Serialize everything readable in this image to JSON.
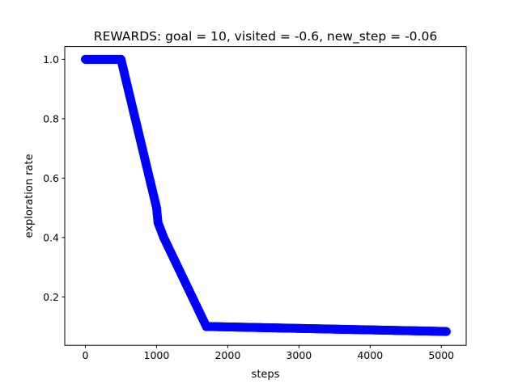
{
  "chart_data": {
    "type": "scatter",
    "title": "REWARDS: goal = 10, visited = -0.6, new_step = -0.06",
    "xlabel": "steps",
    "ylabel": "exploration rate",
    "xlim": [
      -290,
      5350
    ],
    "ylim": [
      0.037,
      1.043
    ],
    "xticks": [
      0,
      1000,
      2000,
      3000,
      4000,
      5000
    ],
    "xtick_labels": [
      "0",
      "1000",
      "2000",
      "3000",
      "4000",
      "5000"
    ],
    "yticks": [
      0.2,
      0.4,
      0.6,
      0.8,
      1.0
    ],
    "ytick_labels": [
      "0.2",
      "0.4",
      "0.6",
      "0.8",
      "1.0"
    ],
    "grid": false,
    "series": [
      {
        "color": "#0000ff",
        "marker": "circle",
        "x": [
          0,
          100,
          200,
          300,
          400,
          500,
          550,
          600,
          650,
          700,
          750,
          800,
          850,
          900,
          950,
          1000,
          1020,
          1100,
          1200,
          1300,
          1400,
          1500,
          1600,
          1700,
          1800,
          1900,
          2000,
          2100,
          2200,
          2300,
          2400,
          2500,
          2600,
          2700,
          2800,
          2900,
          3000,
          3100,
          3200,
          3300,
          3400,
          3500,
          3600,
          3700,
          3800,
          3900,
          4000,
          4100,
          4200,
          4300,
          4400,
          4500,
          4600,
          4700,
          4800,
          4900,
          5000,
          5070
        ],
        "y": [
          1.0,
          1.0,
          1.0,
          1.0,
          1.0,
          1.0,
          0.95,
          0.9,
          0.85,
          0.8,
          0.75,
          0.7,
          0.65,
          0.6,
          0.55,
          0.5,
          0.45,
          0.4,
          0.35,
          0.3,
          0.25,
          0.2,
          0.15,
          0.1,
          0.1,
          0.0995,
          0.099,
          0.0985,
          0.098,
          0.0975,
          0.097,
          0.0965,
          0.096,
          0.0955,
          0.095,
          0.0945,
          0.094,
          0.0935,
          0.093,
          0.0925,
          0.092,
          0.0915,
          0.091,
          0.0905,
          0.09,
          0.0895,
          0.089,
          0.0885,
          0.088,
          0.0875,
          0.087,
          0.0865,
          0.086,
          0.0855,
          0.085,
          0.0845,
          0.084,
          0.0835
        ]
      }
    ]
  }
}
